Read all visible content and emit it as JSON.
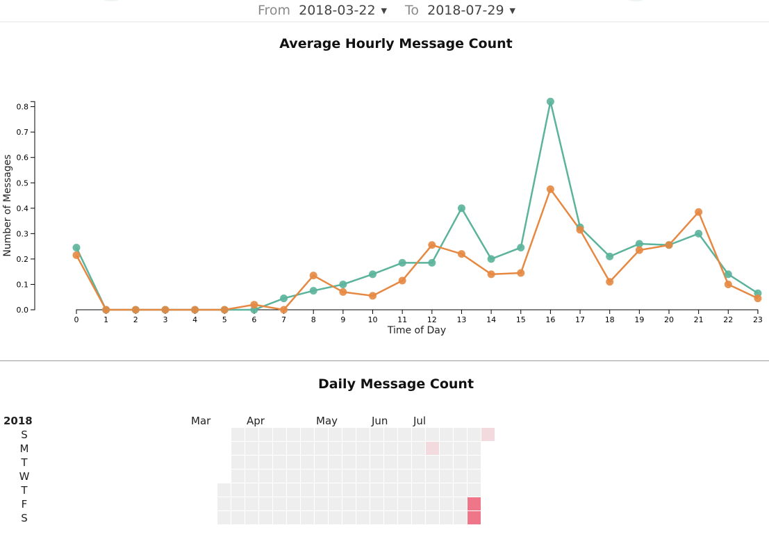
{
  "header": {
    "from_label": "From",
    "from_value": "2018-03-22",
    "to_label": "To",
    "to_value": "2018-07-29",
    "dropdown_icon": "caret-down-icon"
  },
  "colors": {
    "series_a": "#5ab39a",
    "series_b": "#e68841",
    "heat_empty": "#eeeeee",
    "heat_low": "#f3dadf",
    "heat_high": "#ef7688"
  },
  "chart_data": [
    {
      "type": "line",
      "title": "Average Hourly Message Count",
      "xlabel": "Time of Day",
      "ylabel": "Number of Messages",
      "x": [
        0,
        1,
        2,
        3,
        4,
        5,
        6,
        7,
        8,
        9,
        10,
        11,
        12,
        13,
        14,
        15,
        16,
        17,
        18,
        19,
        20,
        21,
        22,
        23
      ],
      "ylim": [
        0,
        0.82
      ],
      "yticks": [
        "0.0",
        "0.1",
        "0.2",
        "0.3",
        "0.4",
        "0.5",
        "0.6",
        "0.7",
        "0.8"
      ],
      "grid": false,
      "series": [
        {
          "color": "#5ab39a",
          "values": [
            0.245,
            0,
            0,
            0,
            0,
            0,
            0,
            0.045,
            0.075,
            0.1,
            0.14,
            0.185,
            0.185,
            0.4,
            0.2,
            0.245,
            0.82,
            0.325,
            0.21,
            0.26,
            0.255,
            0.3,
            0.14,
            0.065
          ]
        },
        {
          "color": "#e68841",
          "values": [
            0.215,
            0,
            0,
            0,
            0,
            0,
            0.02,
            0,
            0.135,
            0.07,
            0.055,
            0.115,
            0.255,
            0.22,
            0.14,
            0.145,
            0.475,
            0.315,
            0.11,
            0.235,
            0.255,
            0.385,
            0.1,
            0.045
          ]
        }
      ]
    },
    {
      "type": "heatmap",
      "title": "Daily Message Count",
      "year": "2018",
      "weekday_labels": [
        "S",
        "M",
        "T",
        "W",
        "T",
        "F",
        "S"
      ],
      "month_labels": [
        "Mar",
        "Apr",
        "May",
        "Jun",
        "Jul"
      ],
      "month_start_week": [
        0,
        4,
        9,
        13,
        16
      ],
      "num_weeks": 20,
      "valid_days": [
        [
          0,
          4
        ],
        [
          0,
          5
        ],
        [
          0,
          6
        ]
      ],
      "last_week_days": [
        0
      ],
      "levels": [
        {
          "week": 15,
          "day": 1,
          "level": "low"
        },
        {
          "week": 18,
          "day": 5,
          "level": "high"
        },
        {
          "week": 18,
          "day": 6,
          "level": "high"
        },
        {
          "week": 19,
          "day": 0,
          "level": "low"
        }
      ]
    }
  ]
}
